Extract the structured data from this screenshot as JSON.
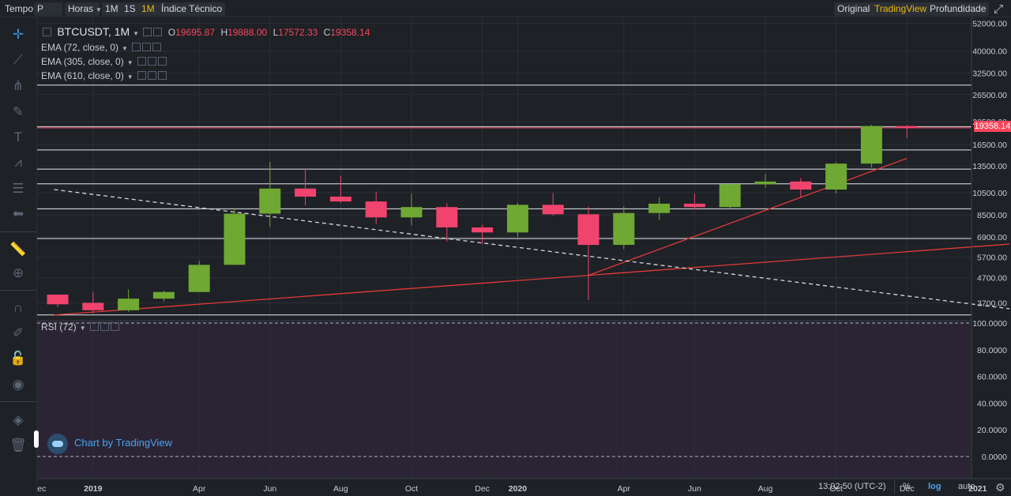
{
  "toolbar": {
    "tempo_label": "Tempo",
    "symbol_select": "P",
    "interval_select": "Horas",
    "intervals": [
      {
        "label": "1M",
        "active": false
      },
      {
        "label": "1S",
        "active": false
      },
      {
        "label": "1M",
        "active": true
      }
    ],
    "indicator_label": "Índice Técnico",
    "view_options": [
      {
        "label": "Original",
        "active": false
      },
      {
        "label": "TradingView",
        "active": true
      },
      {
        "label": "Profundidade",
        "active": false
      }
    ]
  },
  "left_toolbar_icons": [
    "crosshair-icon",
    "trend-line-icon",
    "pitchfork-icon",
    "brush-icon",
    "text-icon",
    "pattern-icon",
    "fib-icon",
    "arrow-left-icon",
    "ruler-icon",
    "zoom-in-icon",
    "magnet-icon",
    "lock-draw-icon",
    "lock-icon",
    "eye-icon",
    "layers-icon",
    "trash-icon"
  ],
  "legend": {
    "symbol": "BTCUSDT, 1M",
    "open_label": "O",
    "open": "19695.87",
    "high_label": "H",
    "high": "19888.00",
    "low_label": "L",
    "low": "17572.33",
    "close_label": "C",
    "close": "19358.14",
    "indicators": [
      "EMA (72, close, 0)",
      "EMA (305, close, 0)",
      "EMA (610, close, 0)"
    ],
    "rsi_label": "RSI (72)"
  },
  "watermark": "Chart by TradingView",
  "last_price_tag": "19358.14",
  "time_display": "13:02:50 (UTC-2)",
  "bottom_controls": [
    {
      "label": "%",
      "active": false
    },
    {
      "label": "log",
      "active": true
    },
    {
      "label": "auto",
      "active": false
    }
  ],
  "colors": {
    "up": "#6fa832",
    "down": "#f0436e",
    "background": "#1e2126",
    "rsi_background": "#2a2435",
    "grid": "#2b2f36",
    "accent": "#f0b90b"
  },
  "chart_data": {
    "type": "candlestick",
    "y_scale": "log",
    "ylim": [
      3150,
      55000
    ],
    "y_ticks": [
      "52000.00",
      "40000.00",
      "32500.00",
      "26500.00",
      "20500.00",
      "16500.00",
      "13500.00",
      "10500.00",
      "8500.00",
      "6900.00",
      "5700.00",
      "4700.00",
      "3700.00"
    ],
    "x_labels": [
      {
        "label": "Dec",
        "index": -1
      },
      {
        "label": "2019",
        "index": 1,
        "bold": true
      },
      {
        "label": "Apr",
        "index": 4
      },
      {
        "label": "Jun",
        "index": 6
      },
      {
        "label": "Aug",
        "index": 8
      },
      {
        "label": "Oct",
        "index": 10
      },
      {
        "label": "Dec",
        "index": 12
      },
      {
        "label": "2020",
        "index": 13,
        "bold": true
      },
      {
        "label": "Apr",
        "index": 16
      },
      {
        "label": "Jun",
        "index": 18
      },
      {
        "label": "Aug",
        "index": 20
      },
      {
        "label": "Oct",
        "index": 22
      },
      {
        "label": "Dec",
        "index": 24
      },
      {
        "label": "2021",
        "index": 26,
        "bold": true
      }
    ],
    "candles": [
      {
        "o": 4000,
        "h": 4000,
        "l": 3550,
        "c": 3650
      },
      {
        "o": 3700,
        "h": 4100,
        "l": 3350,
        "c": 3450
      },
      {
        "o": 3450,
        "h": 4200,
        "l": 3400,
        "c": 3850
      },
      {
        "o": 3850,
        "h": 4150,
        "l": 3750,
        "c": 4100
      },
      {
        "o": 4100,
        "h": 5500,
        "l": 4100,
        "c": 5300
      },
      {
        "o": 5300,
        "h": 9000,
        "l": 5300,
        "c": 8600
      },
      {
        "o": 8600,
        "h": 14000,
        "l": 7600,
        "c": 10900
      },
      {
        "o": 10900,
        "h": 13200,
        "l": 9300,
        "c": 10100
      },
      {
        "o": 10100,
        "h": 12300,
        "l": 9500,
        "c": 9650
      },
      {
        "o": 9650,
        "h": 10600,
        "l": 7800,
        "c": 8300
      },
      {
        "o": 8300,
        "h": 10400,
        "l": 7700,
        "c": 9150
      },
      {
        "o": 9150,
        "h": 9500,
        "l": 6600,
        "c": 7550
      },
      {
        "o": 7550,
        "h": 7750,
        "l": 6450,
        "c": 7200
      },
      {
        "o": 7200,
        "h": 9550,
        "l": 6900,
        "c": 9350
      },
      {
        "o": 9350,
        "h": 10450,
        "l": 8450,
        "c": 8550
      },
      {
        "o": 8550,
        "h": 9200,
        "l": 3800,
        "c": 6400
      },
      {
        "o": 6400,
        "h": 9200,
        "l": 6150,
        "c": 8650
      },
      {
        "o": 8650,
        "h": 10050,
        "l": 8100,
        "c": 9450
      },
      {
        "o": 9450,
        "h": 10400,
        "l": 8950,
        "c": 9150
      },
      {
        "o": 9150,
        "h": 11450,
        "l": 9000,
        "c": 11350
      },
      {
        "o": 11350,
        "h": 12500,
        "l": 11000,
        "c": 11650
      },
      {
        "o": 11650,
        "h": 12050,
        "l": 10000,
        "c": 10800
      },
      {
        "o": 10800,
        "h": 14000,
        "l": 10400,
        "c": 13800
      },
      {
        "o": 13800,
        "h": 19900,
        "l": 13300,
        "c": 19700
      },
      {
        "o": 19695.87,
        "h": 19888.0,
        "l": 17572.33,
        "c": 19358.14
      }
    ],
    "horizontal_levels": [
      29000,
      19358.14,
      15700,
      13100,
      11400,
      9000,
      6800,
      3300
    ],
    "trend_lines": [
      {
        "style": "solid",
        "color": "#e03a3a",
        "from": [
          -0.1,
          3300
        ],
        "to": [
          26.9,
          6450
        ]
      },
      {
        "style": "solid",
        "color": "#e03a3a",
        "from": [
          15.0,
          4800
        ],
        "to": [
          24.0,
          14500
        ]
      },
      {
        "style": "dashed",
        "color": "#d5d8de",
        "from": [
          -0.1,
          10800
        ],
        "to": [
          26.9,
          3500
        ]
      }
    ],
    "rsi": {
      "ticks": [
        "100.0000",
        "80.0000",
        "60.0000",
        "40.0000",
        "20.0000",
        "0.0000"
      ],
      "ylim": [
        0,
        100
      ]
    }
  }
}
